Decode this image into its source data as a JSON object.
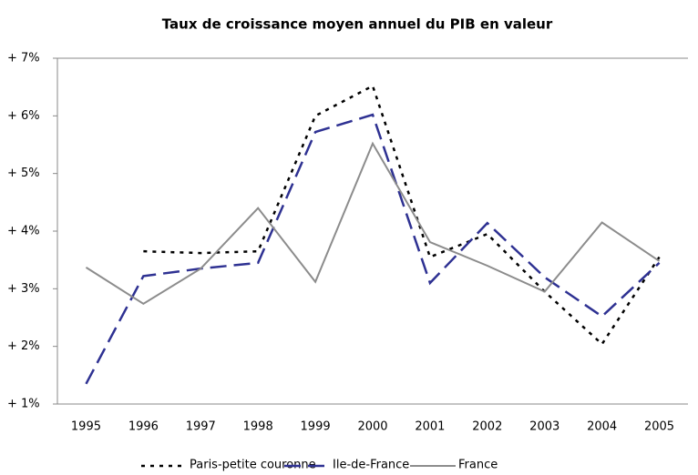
{
  "chart_data": {
    "type": "line",
    "title": "Taux de croissance moyen annuel du PIB en valeur",
    "categories": [
      "1995",
      "1996",
      "1997",
      "1998",
      "1999",
      "2000",
      "2001",
      "2002",
      "2003",
      "2004",
      "2005"
    ],
    "series": [
      {
        "name": "Paris-petite couronne",
        "color": "#000000",
        "dash": "4,6",
        "values": [
          null,
          3.65,
          3.62,
          3.65,
          6.0,
          6.52,
          3.55,
          3.95,
          2.95,
          2.04,
          3.55
        ]
      },
      {
        "name": "Ile-de-France",
        "color": "#2e3192",
        "dash": "18,8",
        "values": [
          1.35,
          3.22,
          3.35,
          3.45,
          5.72,
          6.02,
          3.1,
          4.14,
          3.2,
          2.52,
          3.45
        ]
      },
      {
        "name": "France",
        "color": "#8c8c8c",
        "dash": "none",
        "values": [
          3.37,
          2.74,
          3.35,
          4.4,
          3.12,
          5.52,
          3.81,
          3.4,
          2.95,
          4.15,
          3.48
        ]
      }
    ],
    "ylim": [
      1,
      7
    ],
    "yticks": [
      {
        "value": 1,
        "label": "+ 1%"
      },
      {
        "value": 2,
        "label": "+ 2%"
      },
      {
        "value": 3,
        "label": "+ 3%"
      },
      {
        "value": 4,
        "label": "+ 4%"
      },
      {
        "value": 5,
        "label": "+ 5%"
      },
      {
        "value": 6,
        "label": "+ 6%"
      },
      {
        "value": 7,
        "label": "+ 7%"
      }
    ],
    "grid": false,
    "legend": "bottom"
  }
}
